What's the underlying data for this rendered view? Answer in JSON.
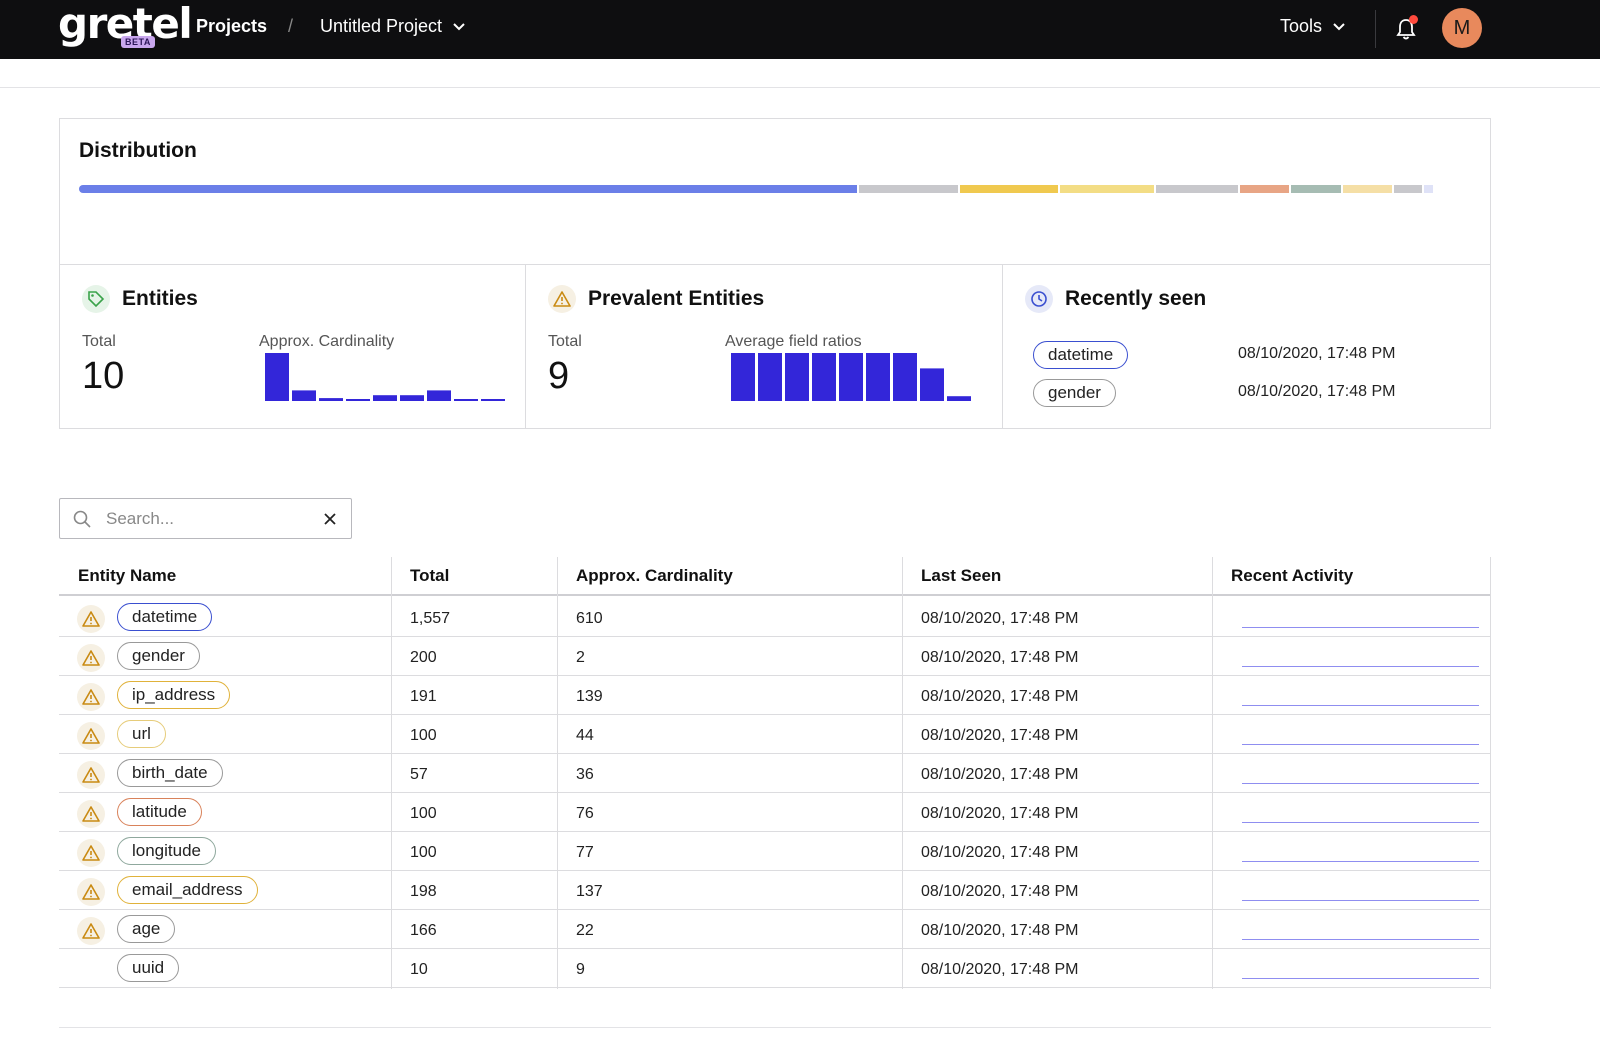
{
  "header": {
    "logo_text": "gretel",
    "logo_badge": "BETA",
    "nav_projects": "Projects",
    "breadcrumb_separator": "/",
    "project_name": "Untitled Project",
    "tools_label": "Tools",
    "avatar_initial": "M"
  },
  "distribution": {
    "title": "Distribution",
    "segments": [
      {
        "share": 0.567,
        "color": "#6b7fe8"
      },
      {
        "share": 0.072,
        "color": "#c8c8cc"
      },
      {
        "share": 0.072,
        "color": "#f0c94f"
      },
      {
        "share": 0.068,
        "color": "#f3dd85"
      },
      {
        "share": 0.06,
        "color": "#c8c8cc"
      },
      {
        "share": 0.036,
        "color": "#e8a585"
      },
      {
        "share": 0.036,
        "color": "#a6bcb3"
      },
      {
        "share": 0.036,
        "color": "#f5dfa6"
      },
      {
        "share": 0.02,
        "color": "#c8c8cc"
      },
      {
        "share": 0.007,
        "color": "#dfe2f7"
      }
    ]
  },
  "entities_panel": {
    "title": "Entities",
    "total_label": "Total",
    "total_value": "10",
    "chart_label": "Approx. Cardinality",
    "bars": [
      1.0,
      0.22,
      0.06,
      0.04,
      0.12,
      0.12,
      0.22,
      0.04,
      0.04
    ]
  },
  "prevalent_panel": {
    "title": "Prevalent Entities",
    "total_label": "Total",
    "total_value": "9",
    "chart_label": "Average field ratios",
    "bars": [
      1.0,
      1.0,
      1.0,
      1.0,
      1.0,
      1.0,
      1.0,
      0.68,
      0.1
    ]
  },
  "recent_panel": {
    "title": "Recently seen",
    "items": [
      {
        "name": "datetime",
        "time": "08/10/2020, 17:48 PM",
        "color": "#3a4fd0"
      },
      {
        "name": "gender",
        "time": "08/10/2020, 17:48 PM",
        "color": "#999999"
      }
    ]
  },
  "search": {
    "placeholder": "Search..."
  },
  "table": {
    "columns": [
      "Entity Name",
      "Total",
      "Approx. Cardinality",
      "Last Seen",
      "Recent Activity"
    ],
    "rows": [
      {
        "name": "datetime",
        "total": "1,557",
        "cardinality": "610",
        "last_seen": "08/10/2020, 17:48 PM",
        "warn": true,
        "color": "#3a4fd0"
      },
      {
        "name": "gender",
        "total": "200",
        "cardinality": "2",
        "last_seen": "08/10/2020, 17:48 PM",
        "warn": true,
        "color": "#999999"
      },
      {
        "name": "ip_address",
        "total": "191",
        "cardinality": "139",
        "last_seen": "08/10/2020, 17:48 PM",
        "warn": true,
        "color": "#e0b23a"
      },
      {
        "name": "url",
        "total": "100",
        "cardinality": "44",
        "last_seen": "08/10/2020, 17:48 PM",
        "warn": true,
        "color": "#e6cc7a"
      },
      {
        "name": "birth_date",
        "total": "57",
        "cardinality": "36",
        "last_seen": "08/10/2020, 17:48 PM",
        "warn": true,
        "color": "#999999"
      },
      {
        "name": "latitude",
        "total": "100",
        "cardinality": "76",
        "last_seen": "08/10/2020, 17:48 PM",
        "warn": true,
        "color": "#d9825a"
      },
      {
        "name": "longitude",
        "total": "100",
        "cardinality": "77",
        "last_seen": "08/10/2020, 17:48 PM",
        "warn": true,
        "color": "#8fa89d"
      },
      {
        "name": "email_address",
        "total": "198",
        "cardinality": "137",
        "last_seen": "08/10/2020, 17:48 PM",
        "warn": true,
        "color": "#e0b23a"
      },
      {
        "name": "age",
        "total": "166",
        "cardinality": "22",
        "last_seen": "08/10/2020, 17:48 PM",
        "warn": true,
        "color": "#999999"
      },
      {
        "name": "uuid",
        "total": "10",
        "cardinality": "9",
        "last_seen": "08/10/2020, 17:48 PM",
        "warn": false,
        "color": "#999999"
      }
    ]
  },
  "colors": {
    "accent_bar": "#3326d9",
    "warn_icon": "#c98a12",
    "tag_icon": "#3aa34a",
    "clock_icon": "#3a4fd0"
  }
}
